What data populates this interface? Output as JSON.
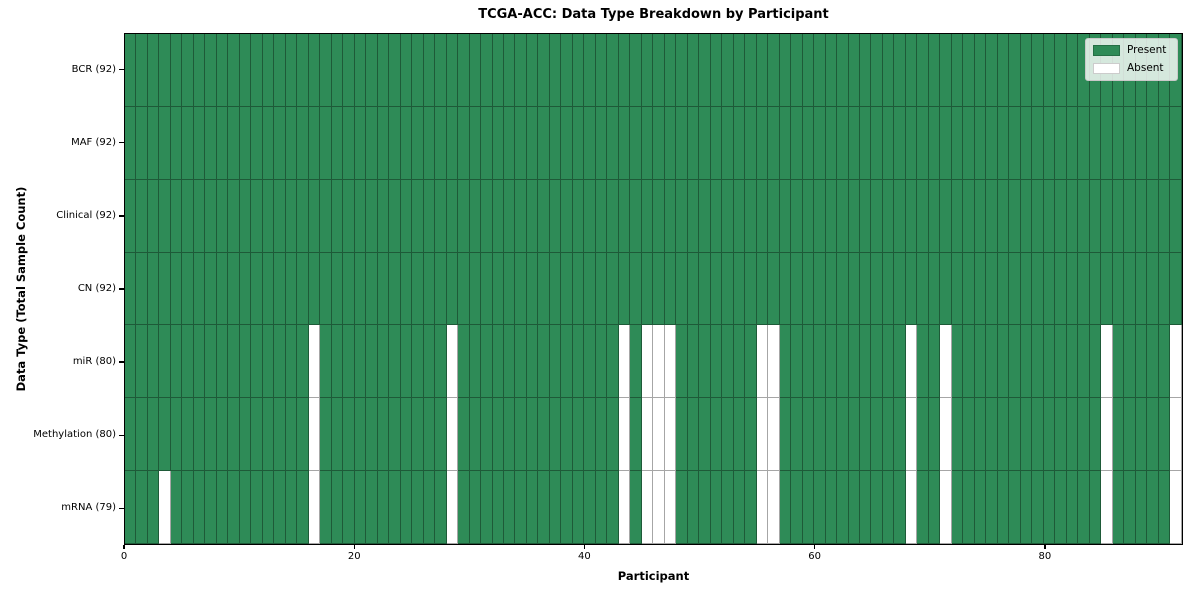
{
  "chart_data": {
    "type": "heatmap",
    "title": "TCGA-ACC: Data Type Breakdown by Participant",
    "xlabel": "Participant",
    "ylabel": "Data Type (Total Sample Count)",
    "n_participants": 92,
    "x_ticks": [
      0,
      20,
      40,
      60,
      80
    ],
    "x_range": [
      0,
      92
    ],
    "grid": "cell-edges",
    "legend_position": "upper right",
    "rows": [
      {
        "data_type": "BCR",
        "label": "BCR (92)",
        "present_count": 92,
        "absent_participants": []
      },
      {
        "data_type": "MAF",
        "label": "MAF (92)",
        "present_count": 92,
        "absent_participants": []
      },
      {
        "data_type": "Clinical",
        "label": "Clinical (92)",
        "present_count": 92,
        "absent_participants": []
      },
      {
        "data_type": "CN",
        "label": "CN (92)",
        "present_count": 92,
        "absent_participants": []
      },
      {
        "data_type": "miR",
        "label": "miR (80)",
        "present_count": 80,
        "absent_participants": [
          16,
          28,
          43,
          45,
          46,
          47,
          55,
          56,
          68,
          71,
          85,
          91
        ]
      },
      {
        "data_type": "Methylation",
        "label": "Methylation (80)",
        "present_count": 80,
        "absent_participants": [
          16,
          28,
          43,
          45,
          46,
          47,
          55,
          56,
          68,
          71,
          85,
          91
        ]
      },
      {
        "data_type": "mRNA",
        "label": "mRNA (79)",
        "present_count": 79,
        "absent_participants": [
          3,
          16,
          28,
          43,
          45,
          46,
          47,
          55,
          56,
          68,
          71,
          85,
          91
        ]
      }
    ],
    "legend": [
      {
        "label": "Present",
        "color": "#2E8B57"
      },
      {
        "label": "Absent",
        "color": "#FFFFFF"
      }
    ],
    "colors": {
      "present": "#2E8B57",
      "absent": "#FFFFFF",
      "cell_edge": "rgba(0,0,0,0.35)",
      "spine": "#000000",
      "background": "#FFFFFF"
    }
  }
}
